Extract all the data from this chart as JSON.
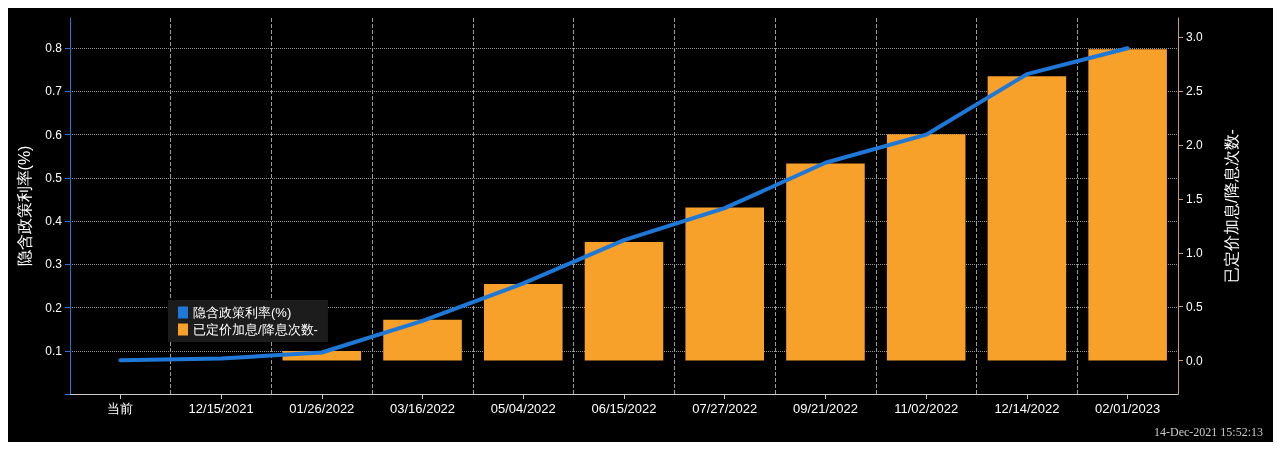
{
  "chart_data": {
    "type": "bar",
    "ylabel": "隐含政策利率(%)",
    "y2label": "已定价加息/降息次数-",
    "categories": [
      "当前",
      "12/15/2021",
      "01/26/2022",
      "03/16/2022",
      "05/04/2022",
      "06/15/2022",
      "07/27/2022",
      "09/21/2022",
      "11/02/2022",
      "12/14/2022",
      "02/01/2023"
    ],
    "series": [
      {
        "name": "隐含政策利率(%)",
        "type": "line",
        "color": "#1e78d8",
        "values": [
          0.078,
          0.082,
          0.096,
          0.169,
          0.256,
          0.356,
          0.43,
          0.535,
          0.6,
          0.74,
          0.8
        ]
      },
      {
        "name": "已定价加息/降息次数-",
        "axis": "y2",
        "color": "#f7a02a",
        "values": [
          0.0,
          null,
          0.09,
          0.38,
          0.71,
          1.1,
          1.42,
          1.83,
          2.1,
          2.64,
          2.89
        ]
      }
    ],
    "ylim": [
      0,
      0.87
    ],
    "yticks": [
      {
        "value": 0,
        "label": null
      },
      0.1,
      0.2,
      0.3,
      0.4,
      0.5,
      0.6,
      0.7,
      0.8
    ],
    "y2lim": [
      -0.31,
      3.18
    ],
    "y2ticks": [
      {
        "value": 0,
        "label": "0.0"
      },
      {
        "value": 0.5,
        "label": "0.5"
      },
      {
        "value": 1,
        "label": "1.0"
      },
      {
        "value": 1.5,
        "label": "1.5"
      },
      {
        "value": 2,
        "label": "2.0"
      },
      {
        "value": 2.5,
        "label": "2.5"
      },
      {
        "value": 3,
        "label": "3.0"
      }
    ],
    "grid": true,
    "legend": "bottom left",
    "marker": "none",
    "line_style": "solid",
    "annotations": [
      "14-Dec-2021 15:52:13"
    ]
  }
}
